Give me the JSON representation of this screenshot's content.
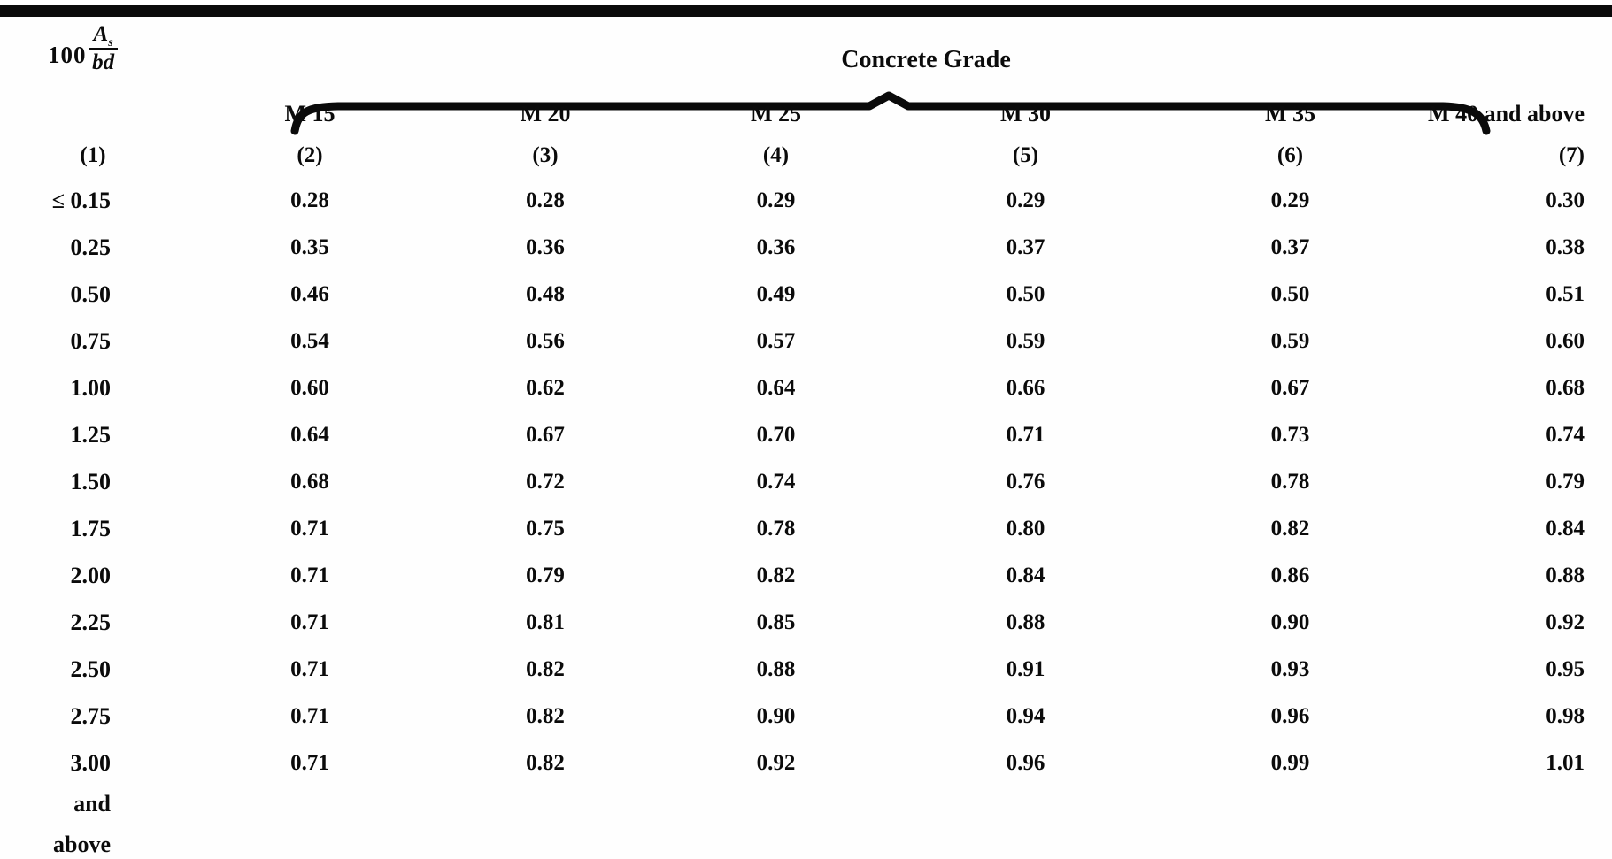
{
  "page": {
    "formula": {
      "coefficient": "100",
      "numerator": "A",
      "numerator_subscript": "s",
      "denominator": "bd"
    },
    "column_group_title": "Concrete Grade",
    "header": {
      "row_label_number": "(1)",
      "columns": [
        {
          "label": "M 15",
          "number": "(2)"
        },
        {
          "label": "M 20",
          "number": "(3)"
        },
        {
          "label": "M 25",
          "number": "(4)"
        },
        {
          "label": "M 30",
          "number": "(5)"
        },
        {
          "label": "M 35",
          "number": "(6)"
        },
        {
          "label": "M 40 and above",
          "number": "(7)"
        }
      ]
    },
    "rows": [
      {
        "label": "≤ 0.15",
        "values": [
          "0.28",
          "0.28",
          "0.29",
          "0.29",
          "0.29",
          "0.30"
        ]
      },
      {
        "label": "0.25",
        "values": [
          "0.35",
          "0.36",
          "0.36",
          "0.37",
          "0.37",
          "0.38"
        ]
      },
      {
        "label": "0.50",
        "values": [
          "0.46",
          "0.48",
          "0.49",
          "0.50",
          "0.50",
          "0.51"
        ]
      },
      {
        "label": "0.75",
        "values": [
          "0.54",
          "0.56",
          "0.57",
          "0.59",
          "0.59",
          "0.60"
        ]
      },
      {
        "label": "1.00",
        "values": [
          "0.60",
          "0.62",
          "0.64",
          "0.66",
          "0.67",
          "0.68"
        ]
      },
      {
        "label": "1.25",
        "values": [
          "0.64",
          "0.67",
          "0.70",
          "0.71",
          "0.73",
          "0.74"
        ]
      },
      {
        "label": "1.50",
        "values": [
          "0.68",
          "0.72",
          "0.74",
          "0.76",
          "0.78",
          "0.79"
        ]
      },
      {
        "label": "1.75",
        "values": [
          "0.71",
          "0.75",
          "0.78",
          "0.80",
          "0.82",
          "0.84"
        ]
      },
      {
        "label": "2.00",
        "values": [
          "0.71",
          "0.79",
          "0.82",
          "0.84",
          "0.86",
          "0.88"
        ]
      },
      {
        "label": "2.25",
        "values": [
          "0.71",
          "0.81",
          "0.85",
          "0.88",
          "0.90",
          "0.92"
        ]
      },
      {
        "label": "2.50",
        "values": [
          "0.71",
          "0.82",
          "0.88",
          "0.91",
          "0.93",
          "0.95"
        ]
      },
      {
        "label": "2.75",
        "values": [
          "0.71",
          "0.82",
          "0.90",
          "0.94",
          "0.96",
          "0.98"
        ]
      },
      {
        "label": "3.00\nand\nabove",
        "values": [
          "0.71",
          "0.82",
          "0.92",
          "0.96",
          "0.99",
          "1.01"
        ]
      }
    ],
    "colors": {
      "ink": "#0a0a0a",
      "paper": "#fefefe"
    }
  }
}
